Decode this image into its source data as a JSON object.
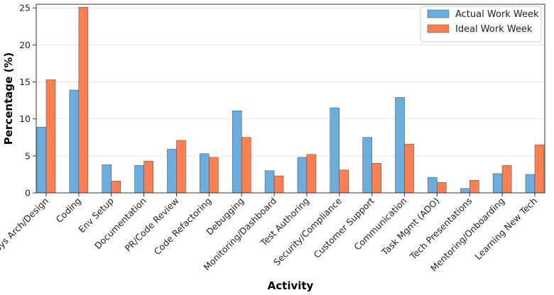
{
  "chart_data": {
    "type": "bar",
    "title": "",
    "xlabel": "Activity",
    "ylabel": "Percentage (%)",
    "ylim": [
      0,
      25.5
    ],
    "yticks": [
      0,
      5,
      10,
      15,
      20,
      25
    ],
    "grid": "horizontal",
    "legend_position": "top-right",
    "categories": [
      "Sys Arch/Design",
      "Coding",
      "Env Setup",
      "Documentation",
      "PR/Code Review",
      "Code Refactoring",
      "Debugging",
      "Monitoring/Dashboard",
      "Test Authoring",
      "Security/Compliance",
      "Customer Support",
      "Communication",
      "Task Mgmt (ADO)",
      "Tech Presentations",
      "Mentoring/Onboarding",
      "Learning New Tech"
    ],
    "series": [
      {
        "name": "Actual Work Week",
        "color": "#6aaee0",
        "values": [
          8.9,
          13.9,
          3.8,
          3.7,
          5.9,
          5.3,
          11.1,
          3.0,
          4.8,
          11.5,
          7.5,
          12.9,
          2.1,
          0.6,
          2.6,
          2.5
        ]
      },
      {
        "name": "Ideal Work Week",
        "color": "#ff7f50",
        "values": [
          15.3,
          25.1,
          1.6,
          4.3,
          7.1,
          4.8,
          7.5,
          2.3,
          5.2,
          3.1,
          4.0,
          6.6,
          1.4,
          1.7,
          3.7,
          6.5
        ]
      }
    ]
  }
}
